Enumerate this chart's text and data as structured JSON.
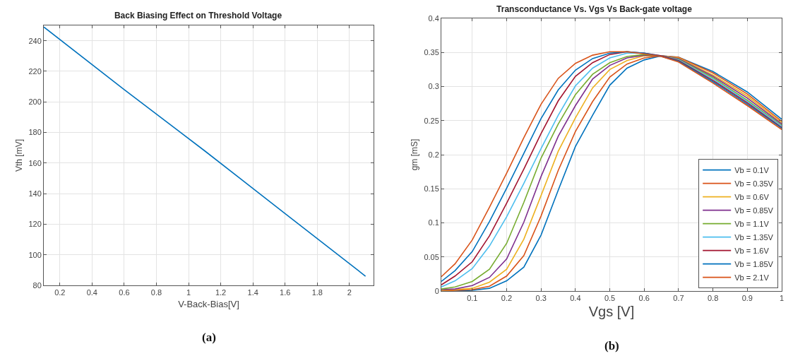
{
  "chart_data": [
    {
      "type": "line",
      "title": "Back Biasing Effect on Threshold Voltage",
      "xlabel": "V-Back-Bias[V]",
      "ylabel": "Vth [mV]",
      "x": [
        0.1,
        0.6,
        1.1,
        1.6,
        2.1
      ],
      "series": [
        {
          "color": "#0072bd",
          "values": [
            249,
            208,
            168,
            127,
            86
          ]
        }
      ],
      "xlim": [
        0.1,
        2.15
      ],
      "xticks": [
        0.2,
        0.4,
        0.6,
        0.8,
        1,
        1.2,
        1.4,
        1.6,
        1.8,
        2
      ],
      "ylim": [
        80,
        250
      ],
      "yticks": [
        80,
        100,
        120,
        140,
        160,
        180,
        200,
        220,
        240
      ],
      "grid": true,
      "legend": false,
      "annotations": [
        "(a)"
      ]
    },
    {
      "type": "line",
      "title": "Transconductance Vs. Vgs Vs Back-gate voltage",
      "xlabel": "Vgs [V]",
      "ylabel": "gm [mS]",
      "x": [
        0.01,
        0.05,
        0.1,
        0.15,
        0.2,
        0.25,
        0.3,
        0.35,
        0.4,
        0.45,
        0.5,
        0.55,
        0.6,
        0.65,
        0.7,
        0.8,
        0.9,
        1.0
      ],
      "series": [
        {
          "name": "Vb = 0.1V",
          "color": "#0072bd",
          "values": [
            0,
            0,
            0.001,
            0.004,
            0.015,
            0.035,
            0.082,
            0.148,
            0.212,
            0.258,
            0.302,
            0.327,
            0.339,
            0.345,
            0.343,
            0.322,
            0.292,
            0.252
          ]
        },
        {
          "name": "Vb = 0.35V",
          "color": "#d95319",
          "values": [
            0,
            0.001,
            0.002,
            0.007,
            0.022,
            0.052,
            0.11,
            0.177,
            0.234,
            0.278,
            0.314,
            0.333,
            0.342,
            0.345,
            0.343,
            0.32,
            0.289,
            0.249
          ]
        },
        {
          "name": "Vb = 0.6V",
          "color": "#edb120",
          "values": [
            0.001,
            0.002,
            0.004,
            0.013,
            0.032,
            0.076,
            0.14,
            0.205,
            0.254,
            0.298,
            0.325,
            0.338,
            0.345,
            0.345,
            0.342,
            0.317,
            0.286,
            0.247
          ]
        },
        {
          "name": "Vb = 0.85V",
          "color": "#7e2f8e",
          "values": [
            0.002,
            0.003,
            0.008,
            0.02,
            0.047,
            0.101,
            0.168,
            0.227,
            0.272,
            0.311,
            0.331,
            0.342,
            0.346,
            0.345,
            0.341,
            0.315,
            0.283,
            0.245
          ]
        },
        {
          "name": "Vb = 1.1V",
          "color": "#77ac30",
          "values": [
            0.003,
            0.006,
            0.014,
            0.032,
            0.07,
            0.13,
            0.195,
            0.245,
            0.288,
            0.318,
            0.335,
            0.344,
            0.347,
            0.345,
            0.34,
            0.313,
            0.28,
            0.243
          ]
        },
        {
          "name": "Vb = 1.35V",
          "color": "#4dbeee",
          "values": [
            0.006,
            0.015,
            0.033,
            0.066,
            0.109,
            0.158,
            0.209,
            0.258,
            0.301,
            0.327,
            0.342,
            0.349,
            0.349,
            0.345,
            0.339,
            0.311,
            0.278,
            0.242
          ]
        },
        {
          "name": "Vb = 1.6V",
          "color": "#a2142f",
          "values": [
            0.009,
            0.022,
            0.043,
            0.081,
            0.129,
            0.179,
            0.231,
            0.279,
            0.315,
            0.335,
            0.347,
            0.351,
            0.349,
            0.345,
            0.338,
            0.309,
            0.276,
            0.24
          ]
        },
        {
          "name": "Vb = 1.85V",
          "color": "#0072bd",
          "values": [
            0.014,
            0.03,
            0.058,
            0.102,
            0.151,
            0.202,
            0.253,
            0.295,
            0.324,
            0.341,
            0.349,
            0.351,
            0.349,
            0.344,
            0.337,
            0.307,
            0.274,
            0.239
          ]
        },
        {
          "name": "Vb = 2.1V",
          "color": "#d95319",
          "values": [
            0.021,
            0.04,
            0.075,
            0.123,
            0.173,
            0.225,
            0.274,
            0.312,
            0.334,
            0.346,
            0.351,
            0.351,
            0.348,
            0.344,
            0.336,
            0.305,
            0.272,
            0.237
          ]
        }
      ],
      "xlim": [
        0.01,
        1
      ],
      "xticks": [
        0.1,
        0.2,
        0.3,
        0.4,
        0.5,
        0.6,
        0.7,
        0.8,
        0.9,
        1
      ],
      "ylim": [
        0,
        0.4
      ],
      "yticks": [
        0,
        0.05,
        0.1,
        0.15,
        0.2,
        0.25,
        0.3,
        0.35,
        0.4
      ],
      "grid": true,
      "legend": "bottom right",
      "annotations": [
        "(b)"
      ]
    }
  ]
}
